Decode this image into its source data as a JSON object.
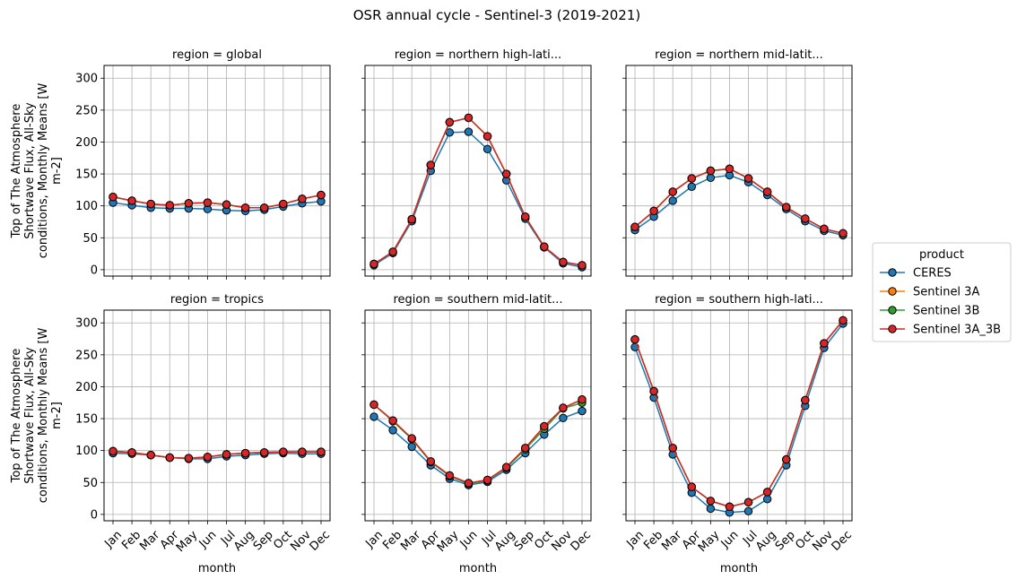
{
  "chart_data": {
    "type": "line",
    "title": "OSR annual cycle - Sentinel-3 (2019-2021)",
    "xlabel": "month",
    "ylabel_lines": [
      "Top of The Atmosphere",
      "Shortwave Flux, All-Sky",
      "conditions, Monthly Means [W",
      "m-2]"
    ],
    "categories": [
      "Jan",
      "Feb",
      "Mar",
      "Apr",
      "May",
      "Jun",
      "Jul",
      "Aug",
      "Sep",
      "Oct",
      "Nov",
      "Dec"
    ],
    "ylim": [
      -10,
      320
    ],
    "yticks": [
      0,
      50,
      100,
      150,
      200,
      250,
      300
    ],
    "grid": true,
    "legend": {
      "title": "product",
      "placement": "right",
      "entries": [
        {
          "name": "CERES",
          "color": "#1f77b4"
        },
        {
          "name": "Sentinel 3A",
          "color": "#ff7f0e"
        },
        {
          "name": "Sentinel 3B",
          "color": "#2ca02c"
        },
        {
          "name": "Sentinel 3A_3B",
          "color": "#d62728"
        }
      ]
    },
    "panels": [
      {
        "title": "region = global",
        "series": [
          {
            "name": "CERES",
            "values": [
              105,
              101,
              97,
              96,
              96,
              95,
              93,
              92,
              94,
              99,
              104,
              107
            ]
          },
          {
            "name": "Sentinel 3A",
            "values": [
              114,
              108,
              103,
              101,
              104,
              105,
              102,
              97,
              97,
              103,
              111,
              117
            ]
          },
          {
            "name": "Sentinel 3B",
            "values": [
              114,
              108,
              103,
              101,
              104,
              105,
              102,
              97,
              97,
              103,
              111,
              117
            ]
          },
          {
            "name": "Sentinel 3A_3B",
            "values": [
              114,
              108,
              103,
              101,
              104,
              105,
              102,
              97,
              97,
              103,
              111,
              117
            ]
          }
        ]
      },
      {
        "title": "region = northern high-lati...",
        "series": [
          {
            "name": "CERES",
            "values": [
              7,
              26,
              76,
              155,
              215,
              216,
              189,
              140,
              80,
              35,
              10,
              4
            ]
          },
          {
            "name": "Sentinel 3A",
            "values": [
              9,
              28,
              79,
              164,
              231,
              238,
              209,
              150,
              83,
              36,
              12,
              7
            ]
          },
          {
            "name": "Sentinel 3B",
            "values": [
              9,
              28,
              79,
              164,
              231,
              238,
              209,
              150,
              83,
              36,
              12,
              7
            ]
          },
          {
            "name": "Sentinel 3A_3B",
            "values": [
              9,
              28,
              79,
              164,
              231,
              238,
              209,
              150,
              83,
              36,
              12,
              7
            ]
          }
        ]
      },
      {
        "title": "region = northern mid-latit...",
        "series": [
          {
            "name": "CERES",
            "values": [
              62,
              83,
              108,
              130,
              144,
              148,
              137,
              117,
              95,
              76,
              61,
              54
            ]
          },
          {
            "name": "Sentinel 3A",
            "values": [
              67,
              92,
              122,
              143,
              155,
              158,
              143,
              122,
              98,
              80,
              64,
              57
            ]
          },
          {
            "name": "Sentinel 3B",
            "values": [
              67,
              92,
              122,
              143,
              155,
              158,
              143,
              122,
              98,
              80,
              64,
              57
            ]
          },
          {
            "name": "Sentinel 3A_3B",
            "values": [
              67,
              92,
              122,
              143,
              155,
              158,
              143,
              122,
              98,
              80,
              64,
              57
            ]
          }
        ]
      },
      {
        "title": "region = tropics",
        "series": [
          {
            "name": "CERES",
            "values": [
              96,
              95,
              93,
              89,
              87,
              87,
              91,
              93,
              95,
              96,
              95,
              95
            ]
          },
          {
            "name": "Sentinel 3A",
            "values": [
              99,
              97,
              93,
              89,
              88,
              90,
              94,
              96,
              97,
              98,
              98,
              98
            ]
          },
          {
            "name": "Sentinel 3B",
            "values": [
              99,
              97,
              93,
              89,
              88,
              90,
              94,
              96,
              97,
              98,
              98,
              98
            ]
          },
          {
            "name": "Sentinel 3A_3B",
            "values": [
              99,
              97,
              93,
              89,
              88,
              90,
              94,
              96,
              97,
              98,
              98,
              98
            ]
          }
        ]
      },
      {
        "title": "region = southern mid-latit...",
        "series": [
          {
            "name": "CERES",
            "values": [
              153,
              132,
              106,
              77,
              56,
              46,
              51,
              70,
              96,
              125,
              151,
              162
            ]
          },
          {
            "name": "Sentinel 3A",
            "values": [
              172,
              147,
              119,
              83,
              61,
              49,
              54,
              74,
              104,
              138,
              167,
              180
            ]
          },
          {
            "name": "Sentinel 3B",
            "values": [
              172,
              146,
              118,
              82,
              60,
              48,
              53,
              73,
              102,
              134,
              166,
              175
            ]
          },
          {
            "name": "Sentinel 3A_3B",
            "values": [
              172,
              147,
              119,
              83,
              61,
              49,
              54,
              74,
              104,
              138,
              167,
              180
            ]
          }
        ]
      },
      {
        "title": "region = southern high-lati...",
        "series": [
          {
            "name": "CERES",
            "values": [
              262,
              183,
              94,
              34,
              9,
              3,
              5,
              24,
              77,
              170,
              261,
              299
            ]
          },
          {
            "name": "Sentinel 3A",
            "values": [
              274,
              193,
              104,
              43,
              21,
              12,
              19,
              35,
              86,
              179,
              268,
              304
            ]
          },
          {
            "name": "Sentinel 3B",
            "values": [
              274,
              193,
              104,
              43,
              21,
              12,
              19,
              35,
              86,
              179,
              268,
              304
            ]
          },
          {
            "name": "Sentinel 3A_3B",
            "values": [
              274,
              193,
              104,
              43,
              21,
              12,
              19,
              35,
              86,
              179,
              268,
              304
            ]
          }
        ]
      }
    ]
  }
}
